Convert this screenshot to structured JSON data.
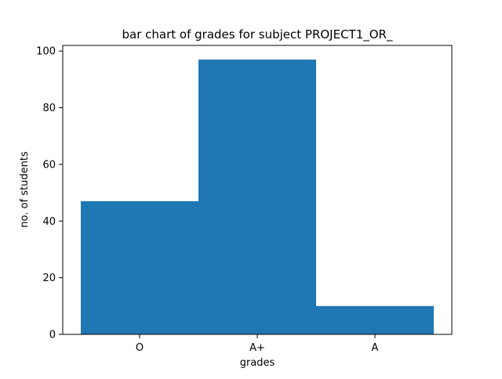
{
  "chart_data": {
    "type": "bar",
    "title": "bar chart of grades for subject PROJECT1_OR_",
    "xlabel": "grades",
    "ylabel": "no. of students",
    "categories": [
      "O",
      "A+",
      "A"
    ],
    "values": [
      47,
      97,
      10
    ],
    "ylim": [
      0,
      102
    ],
    "yticks": [
      "0",
      "20",
      "40",
      "60",
      "80",
      "100"
    ],
    "ytick_values": [
      0,
      20,
      40,
      60,
      80,
      100
    ],
    "bar_color": "#1f77b4",
    "grid": false,
    "legend": "none"
  }
}
